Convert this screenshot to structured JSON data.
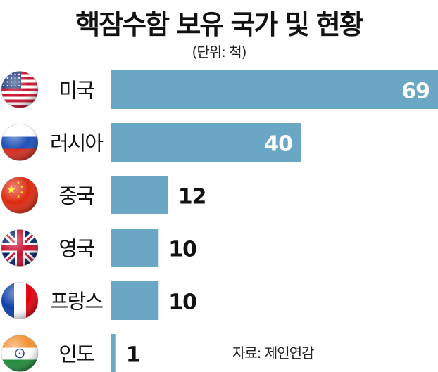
{
  "title": "핵잠수함 보유 국가 및 현황",
  "unit": "(단위: 척)",
  "source": "자료: 제인연감",
  "colors": {
    "bar": "#6aa7c4"
  },
  "chart_data": {
    "type": "bar",
    "orientation": "horizontal",
    "categories": [
      "미국",
      "러시아",
      "중국",
      "영국",
      "프랑스",
      "인도"
    ],
    "values": [
      69,
      40,
      12,
      10,
      10,
      1
    ],
    "flags": [
      "us-flag-icon",
      "russia-flag-icon",
      "china-flag-icon",
      "uk-flag-icon",
      "france-flag-icon",
      "india-flag-icon"
    ],
    "xlim": [
      0,
      69
    ],
    "grid": false,
    "legend": "none"
  }
}
